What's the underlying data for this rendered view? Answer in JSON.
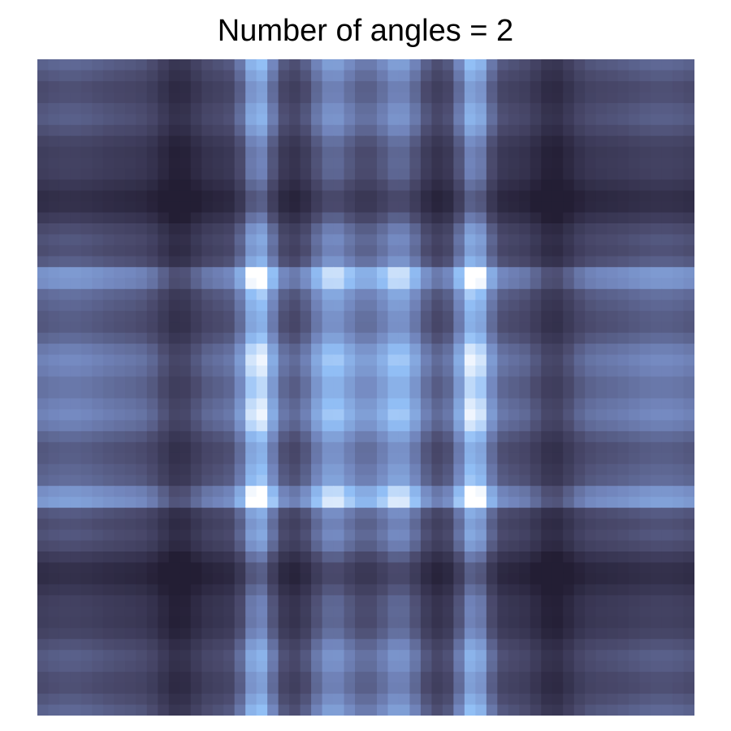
{
  "title": "Number of angles = 2",
  "colormap": {
    "dark": "#27233a",
    "mid": "#7a90c8",
    "light": "#94c0f6",
    "brightest": "#ffffff"
  }
}
